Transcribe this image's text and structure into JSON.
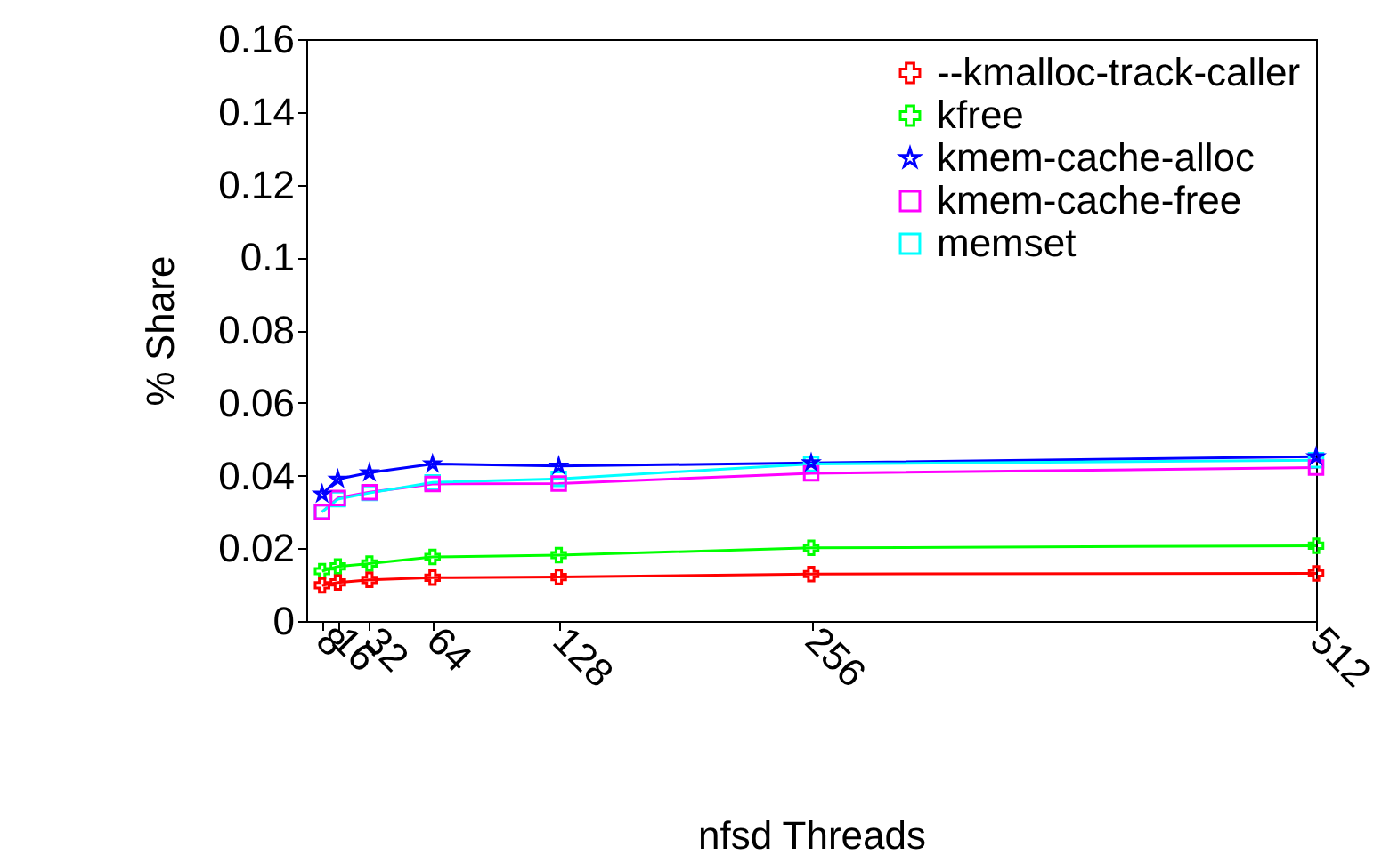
{
  "chart_data": {
    "type": "line",
    "xlabel": "nfsd Threads",
    "ylabel": "% Share",
    "x": [
      8,
      16,
      32,
      64,
      128,
      256,
      512
    ],
    "xlim": [
      0,
      512
    ],
    "xticks": [
      8,
      16,
      32,
      64,
      128,
      256,
      512
    ],
    "ylim": [
      0,
      0.16
    ],
    "yticks": [
      0,
      0.02,
      0.04,
      0.06,
      0.08,
      0.1,
      0.12,
      0.14,
      0.16
    ],
    "grid": false,
    "legend": "top right",
    "line_style": "solid",
    "series": [
      {
        "name": "--kmalloc-track-caller",
        "color": "#ff0000",
        "marker": "cross",
        "values": [
          0.0098,
          0.0106,
          0.0113,
          0.0119,
          0.0121,
          0.0129,
          0.0131
        ]
      },
      {
        "name": "kfree",
        "color": "#00ff00",
        "marker": "cross",
        "values": [
          0.0137,
          0.015,
          0.0158,
          0.0176,
          0.0181,
          0.0201,
          0.0207
        ]
      },
      {
        "name": "kmem-cache-alloc",
        "color": "#0000ff",
        "marker": "star",
        "values": [
          0.0349,
          0.039,
          0.0408,
          0.0432,
          0.0426,
          0.0435,
          0.0452
        ]
      },
      {
        "name": "kmem-cache-free",
        "color": "#ff00ff",
        "marker": "square",
        "values": [
          0.03,
          0.0338,
          0.0354,
          0.0377,
          0.0378,
          0.0406,
          0.0422
        ]
      },
      {
        "name": "memset",
        "color": "#00ffff",
        "marker": "square",
        "values": [
          0.03,
          0.0335,
          0.0352,
          0.0381,
          0.0391,
          0.0432,
          0.0442
        ]
      }
    ]
  }
}
